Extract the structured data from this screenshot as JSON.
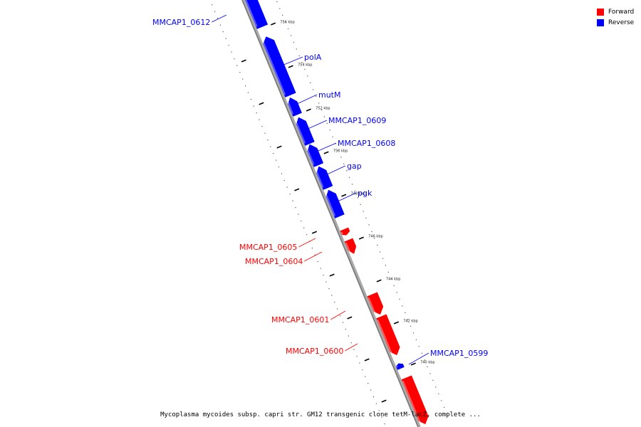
{
  "legend": [
    {
      "label": "Forward",
      "color": "#ff0000"
    },
    {
      "label": "Reverse",
      "color": "#0000ff"
    }
  ],
  "caption": "Mycoplasma mycoides subsp. capri str. GM12 transgenic clone tetM-lacZ, complete ...",
  "ticks": [
    "756 kbp",
    "754 kbp",
    "752 kbp",
    "750 kbp",
    "748 kbp",
    "746 kbp",
    "744 kbp",
    "742 kbp",
    "740 kbp"
  ],
  "genes": [
    {
      "name": "MMCAP1_0612",
      "strand": "reverse"
    },
    {
      "name": "polA",
      "strand": "reverse"
    },
    {
      "name": "mutM",
      "strand": "reverse"
    },
    {
      "name": "MMCAP1_0609",
      "strand": "reverse"
    },
    {
      "name": "MMCAP1_0608",
      "strand": "reverse"
    },
    {
      "name": "gap",
      "strand": "reverse"
    },
    {
      "name": "pgk",
      "strand": "reverse"
    },
    {
      "name": "MMCAP1_0605",
      "strand": "forward"
    },
    {
      "name": "MMCAP1_0604",
      "strand": "forward"
    },
    {
      "name": "MMCAP1_0601",
      "strand": "forward"
    },
    {
      "name": "MMCAP1_0600",
      "strand": "forward"
    },
    {
      "name": "MMCAP1_0599",
      "strand": "reverse"
    },
    {
      "name": "",
      "strand": "forward"
    }
  ]
}
